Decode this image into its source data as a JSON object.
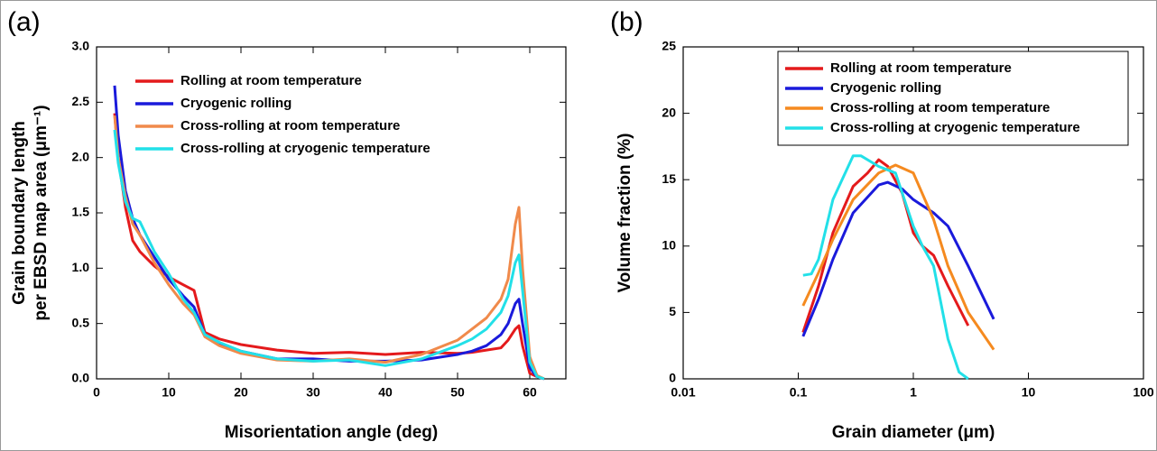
{
  "chart_data": [
    {
      "type": "line",
      "panel_label": "(a)",
      "xlabel": "Misorientation angle (deg)",
      "ylabel": [
        "Grain boundary length",
        "per EBSD map area (μm⁻¹)"
      ],
      "xlim": [
        0,
        65
      ],
      "ylim": [
        0,
        3
      ],
      "xticks": [
        0,
        10,
        20,
        30,
        40,
        50,
        60
      ],
      "yticks": [
        {
          "value": 0,
          "label": "0.0"
        },
        {
          "value": 0.5,
          "label": "0.5"
        },
        {
          "value": 1,
          "label": "1.0"
        },
        {
          "value": 1.5,
          "label": "1.5"
        },
        {
          "value": 2,
          "label": "2.0"
        },
        {
          "value": 2.5,
          "label": "2.5"
        },
        {
          "value": 3,
          "label": "3.0"
        }
      ],
      "x": [
        2.5,
        3,
        4,
        5,
        6,
        8,
        10,
        12,
        13.5,
        15,
        17,
        20,
        25,
        30,
        35,
        40,
        45,
        50,
        52,
        54,
        56,
        57,
        58,
        58.5,
        59,
        60,
        61,
        62
      ],
      "legend_box": false,
      "series": [
        {
          "name": "Rolling at room temperature",
          "color": "#e41a1c",
          "values": [
            2.4,
            2.0,
            1.55,
            1.25,
            1.15,
            1.02,
            0.92,
            0.85,
            0.8,
            0.42,
            0.36,
            0.31,
            0.26,
            0.23,
            0.24,
            0.22,
            0.24,
            0.23,
            0.24,
            0.26,
            0.28,
            0.35,
            0.45,
            0.48,
            0.3,
            0.05,
            0.02,
            0
          ]
        },
        {
          "name": "Cryogenic rolling",
          "color": "#1a1adb",
          "values": [
            2.65,
            2.2,
            1.7,
            1.45,
            1.3,
            1.1,
            0.9,
            0.75,
            0.65,
            0.4,
            0.32,
            0.25,
            0.18,
            0.18,
            0.16,
            0.16,
            0.17,
            0.22,
            0.25,
            0.3,
            0.4,
            0.5,
            0.68,
            0.72,
            0.5,
            0.1,
            0.02,
            0
          ]
        },
        {
          "name": "Cross-rolling at room temperature",
          "color": "#f08a4b",
          "values": [
            2.38,
            2.0,
            1.65,
            1.4,
            1.3,
            1.05,
            0.85,
            0.68,
            0.58,
            0.38,
            0.3,
            0.23,
            0.17,
            0.16,
            0.18,
            0.15,
            0.22,
            0.35,
            0.45,
            0.55,
            0.72,
            0.9,
            1.4,
            1.55,
            1.0,
            0.2,
            0.03,
            0
          ]
        },
        {
          "name": "Cross-rolling at cryogenic temperature",
          "color": "#22e0e8",
          "values": [
            2.25,
            1.95,
            1.6,
            1.45,
            1.42,
            1.15,
            0.95,
            0.72,
            0.6,
            0.4,
            0.33,
            0.25,
            0.18,
            0.16,
            0.17,
            0.12,
            0.18,
            0.3,
            0.36,
            0.45,
            0.6,
            0.75,
            1.05,
            1.12,
            0.8,
            0.15,
            0.02,
            0
          ]
        }
      ]
    },
    {
      "type": "line",
      "panel_label": "(b)",
      "xlabel": "Grain diameter (μm)",
      "ylabel": [
        "Volume fraction (%)"
      ],
      "log_x": true,
      "xlim": [
        0.01,
        100
      ],
      "ylim": [
        0,
        25
      ],
      "xticks": [
        0.01,
        0.1,
        1,
        10,
        100
      ],
      "yticks": [
        0,
        5,
        10,
        15,
        20,
        25
      ],
      "legend_box": true,
      "series": [
        {
          "name": "Rolling at room temperature",
          "color": "#e41a1c",
          "x": [
            0.11,
            0.15,
            0.2,
            0.3,
            0.4,
            0.5,
            0.6,
            0.8,
            1,
            1.2,
            1.5,
            2,
            3
          ],
          "values": [
            3.5,
            7,
            11,
            14.5,
            15.5,
            16.5,
            16,
            14,
            11,
            10,
            9.3,
            7,
            4
          ]
        },
        {
          "name": "Cryogenic rolling",
          "color": "#1a1adb",
          "x": [
            0.11,
            0.15,
            0.2,
            0.3,
            0.5,
            0.6,
            0.8,
            1,
            1.5,
            2,
            3,
            5
          ],
          "values": [
            3.2,
            6,
            9,
            12.5,
            14.6,
            14.8,
            14.3,
            13.5,
            12.5,
            11.5,
            8.5,
            4.5
          ]
        },
        {
          "name": "Cross-rolling at room temperature",
          "color": "#f58a1f",
          "x": [
            0.11,
            0.15,
            0.2,
            0.3,
            0.5,
            0.7,
            1,
            1.5,
            2,
            3,
            5
          ],
          "values": [
            5.5,
            8,
            10.5,
            13.5,
            15.5,
            16.1,
            15.5,
            12,
            8.5,
            5,
            2.2
          ]
        },
        {
          "name": "Cross-rolling at cryogenic temperature",
          "color": "#22e0e8",
          "x": [
            0.11,
            0.13,
            0.15,
            0.2,
            0.3,
            0.35,
            0.5,
            0.7,
            1,
            1.2,
            1.5,
            2,
            2.5,
            3
          ],
          "values": [
            7.8,
            7.9,
            9,
            13.5,
            16.8,
            16.8,
            16,
            15.5,
            11.5,
            10,
            8.5,
            3,
            0.5,
            0
          ]
        }
      ]
    }
  ]
}
